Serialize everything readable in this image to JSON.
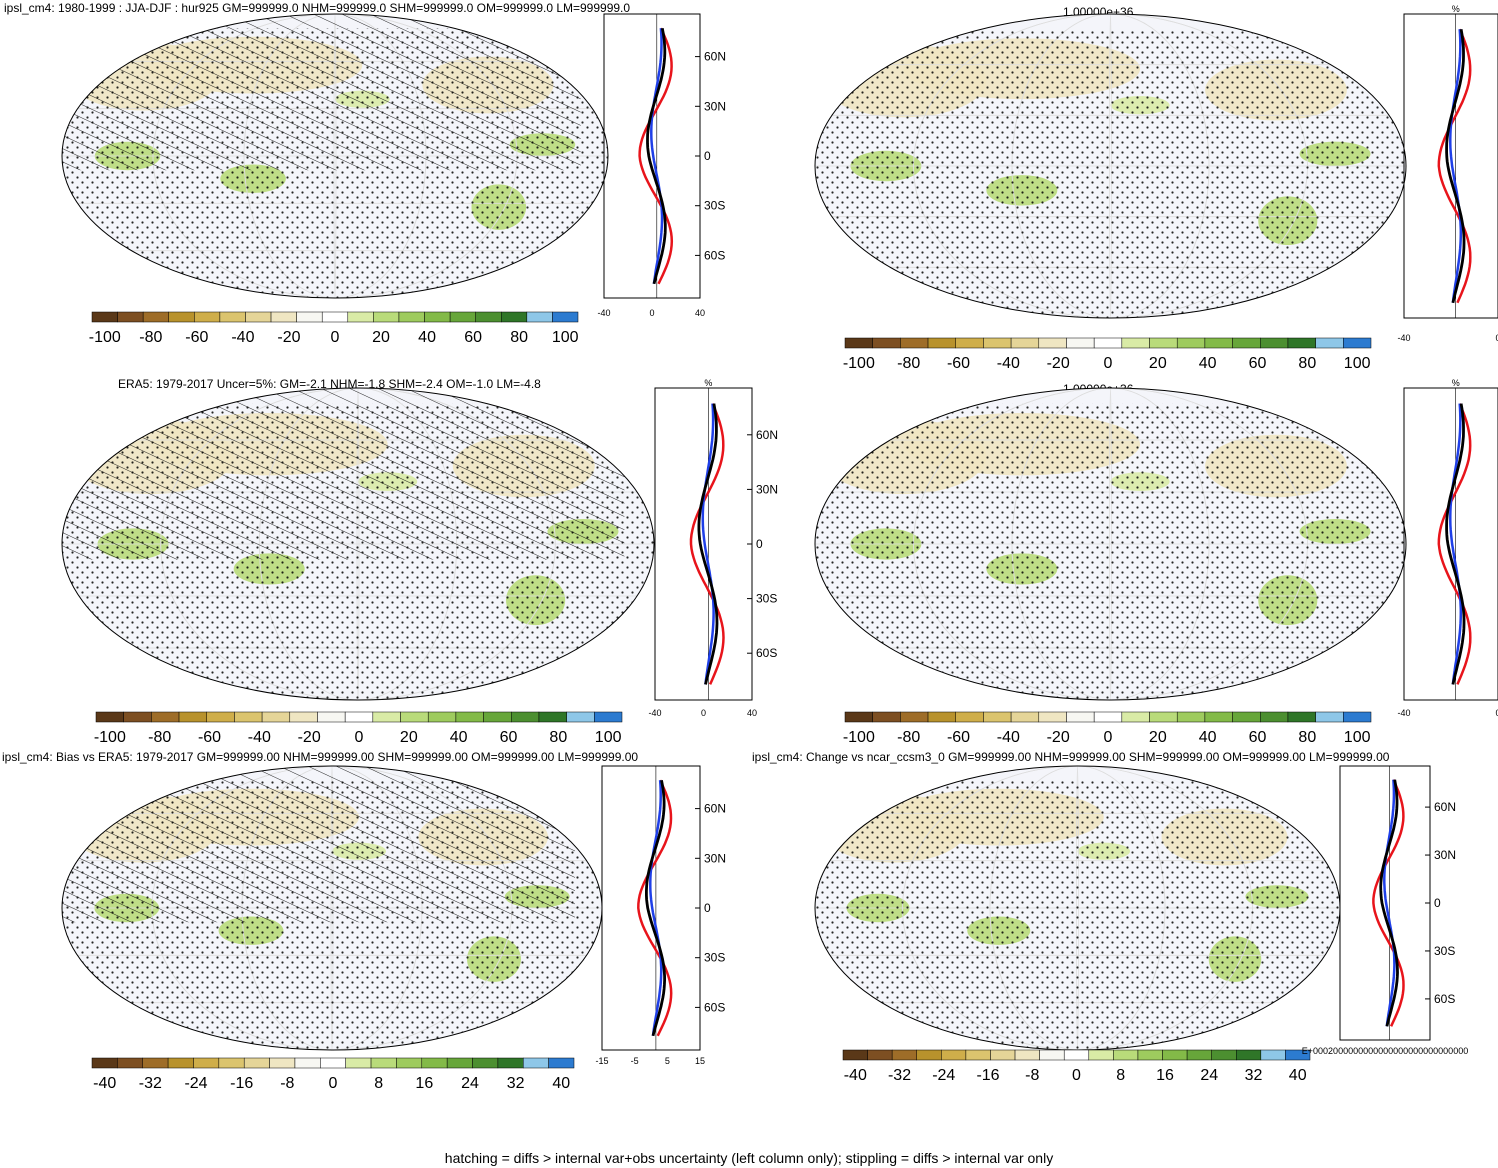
{
  "footer": "hatching = diffs > internal var+obs uncertainty (left column only); stippling = diffs > internal var only",
  "colorbar_colors": [
    "#5a3818",
    "#7d4f22",
    "#9e6d28",
    "#b8922c",
    "#cfae4a",
    "#dbc46e",
    "#e5d598",
    "#efe6c2",
    "#f7f7f2",
    "#ffffff",
    "#d9eba6",
    "#b9db7a",
    "#9ecb5e",
    "#83ba48",
    "#67a63a",
    "#4c8f30",
    "#2f7628",
    "#8ec7e8",
    "#2c7bd0"
  ],
  "panels": [
    {
      "id": "model-top-left",
      "title": "ipsl_cm4: 1980-1999 : JJA-DJF : hur925 GM=999999.0 NHM=999999.0 SHM=999999.0 OM=999999.0 LM=999999.0",
      "hatched": true,
      "colorbar_labels": [
        "-100",
        "-80",
        "-60",
        "-40",
        "-20",
        "0",
        "20",
        "40",
        "60",
        "80",
        "100"
      ],
      "profile_header": "",
      "profile_xticks": [
        "-40",
        "0",
        "40"
      ],
      "profile_lat_labels": [
        "60N",
        "30N",
        "0",
        "30S",
        "60S"
      ]
    },
    {
      "id": "model-top-right",
      "title": "1.00000e+36",
      "hatched": false,
      "colorbar_labels": [
        "-100",
        "-80",
        "-60",
        "-40",
        "-20",
        "0",
        "20",
        "40",
        "60",
        "80",
        "100"
      ],
      "profile_header": "%",
      "profile_xticks": [
        "-40",
        "0"
      ],
      "profile_lat_labels": []
    },
    {
      "id": "obs-middle-left",
      "title": "ERA5: 1979-2017 Uncer=5%: GM=-2.1 NHM=-1.8 SHM=-2.4 OM=-1.0 LM=-4.8",
      "hatched": true,
      "colorbar_labels": [
        "-100",
        "-80",
        "-60",
        "-40",
        "-20",
        "0",
        "20",
        "40",
        "60",
        "80",
        "100"
      ],
      "profile_header": "%",
      "profile_xticks": [
        "-40",
        "0",
        "40"
      ],
      "profile_lat_labels": [
        "60N",
        "30N",
        "0",
        "30S",
        "60S"
      ]
    },
    {
      "id": "obs-middle-right",
      "title": "1.00000e+36",
      "hatched": false,
      "colorbar_labels": [
        "-100",
        "-80",
        "-60",
        "-40",
        "-20",
        "0",
        "20",
        "40",
        "60",
        "80",
        "100"
      ],
      "profile_header": "%",
      "profile_xticks": [
        "-40",
        "0"
      ],
      "profile_lat_labels": []
    },
    {
      "id": "bias-bottom-left",
      "title": "ipsl_cm4: Bias vs ERA5: 1979-2017 GM=999999.00 NHM=999999.00 SHM=999999.00 OM=999999.00 LM=999999.00",
      "hatched": true,
      "colorbar_labels": [
        "-40",
        "-32",
        "-24",
        "-16",
        "-8",
        "0",
        "8",
        "16",
        "24",
        "32",
        "40"
      ],
      "profile_header": "",
      "profile_xticks": [
        "-15",
        "-5",
        "5",
        "15"
      ],
      "profile_lat_labels": [
        "60N",
        "30N",
        "0",
        "30S",
        "60S"
      ]
    },
    {
      "id": "change-bottom-right",
      "title": "ipsl_cm4: Change vs ncar_ccsm3_0 GM=999999.00 NHM=999999.00 SHM=999999.00 OM=999999.00 LM=999999.00",
      "hatched": false,
      "colorbar_labels": [
        "-40",
        "-32",
        "-24",
        "-16",
        "-8",
        "0",
        "8",
        "16",
        "24",
        "32",
        "40"
      ],
      "profile_header": "",
      "profile_xticks": [
        "E+0002000000000000000000000000000"
      ],
      "profile_lat_labels": [
        "60N",
        "30N",
        "0",
        "30S",
        "60S"
      ]
    }
  ],
  "chart_data": [
    {
      "type": "heatmap",
      "title": "ipsl_cm4: 1980-1999 : JJA-DJF : hur925 GM=999999.0 NHM=999999.0 SHM=999999.0 OM=999999.0 LM=999999.0",
      "colorbar_range": [
        -100,
        100
      ],
      "colorbar_ticks": [
        -100,
        -80,
        -60,
        -40,
        -20,
        0,
        20,
        40,
        60,
        80,
        100
      ],
      "profile_xrange": [
        -40,
        40
      ],
      "lat_ticks": [
        "60N",
        "30N",
        "0",
        "30S",
        "60S"
      ]
    },
    {
      "type": "heatmap",
      "title": "1.00000e+36",
      "colorbar_range": [
        -100,
        100
      ],
      "colorbar_ticks": [
        -100,
        -80,
        -60,
        -40,
        -20,
        0,
        20,
        40,
        60,
        80,
        100
      ],
      "profile_xrange": [
        -40,
        0
      ]
    },
    {
      "type": "heatmap",
      "title": "ERA5: 1979-2017 Uncer=5%: GM=-2.1 NHM=-1.8 SHM=-2.4 OM=-1.0 LM=-4.8",
      "colorbar_range": [
        -100,
        100
      ],
      "colorbar_ticks": [
        -100,
        -80,
        -60,
        -40,
        -20,
        0,
        20,
        40,
        60,
        80,
        100
      ],
      "profile_xrange": [
        -40,
        40
      ],
      "lat_ticks": [
        "60N",
        "30N",
        "0",
        "30S",
        "60S"
      ]
    },
    {
      "type": "heatmap",
      "title": "1.00000e+36",
      "colorbar_range": [
        -100,
        100
      ],
      "colorbar_ticks": [
        -100,
        -80,
        -60,
        -40,
        -20,
        0,
        20,
        40,
        60,
        80,
        100
      ],
      "profile_xrange": [
        -40,
        0
      ]
    },
    {
      "type": "heatmap",
      "title": "ipsl_cm4: Bias vs ERA5: 1979-2017 GM=999999.00 NHM=999999.00 SHM=999999.00 OM=999999.00 LM=999999.00",
      "colorbar_range": [
        -40,
        40
      ],
      "colorbar_ticks": [
        -40,
        -32,
        -24,
        -16,
        -8,
        0,
        8,
        16,
        24,
        32,
        40
      ],
      "profile_xrange": [
        -15,
        15
      ],
      "lat_ticks": [
        "60N",
        "30N",
        "0",
        "30S",
        "60S"
      ]
    },
    {
      "type": "heatmap",
      "title": "ipsl_cm4: Change vs ncar_ccsm3_0 GM=999999.00 NHM=999999.00 SHM=999999.00 OM=999999.00 LM=999999.00",
      "colorbar_range": [
        -40,
        40
      ],
      "colorbar_ticks": [
        -40,
        -32,
        -24,
        -16,
        -8,
        0,
        8,
        16,
        24,
        32,
        40
      ],
      "lat_ticks": [
        "60N",
        "30N",
        "0",
        "30S",
        "60S"
      ]
    }
  ]
}
